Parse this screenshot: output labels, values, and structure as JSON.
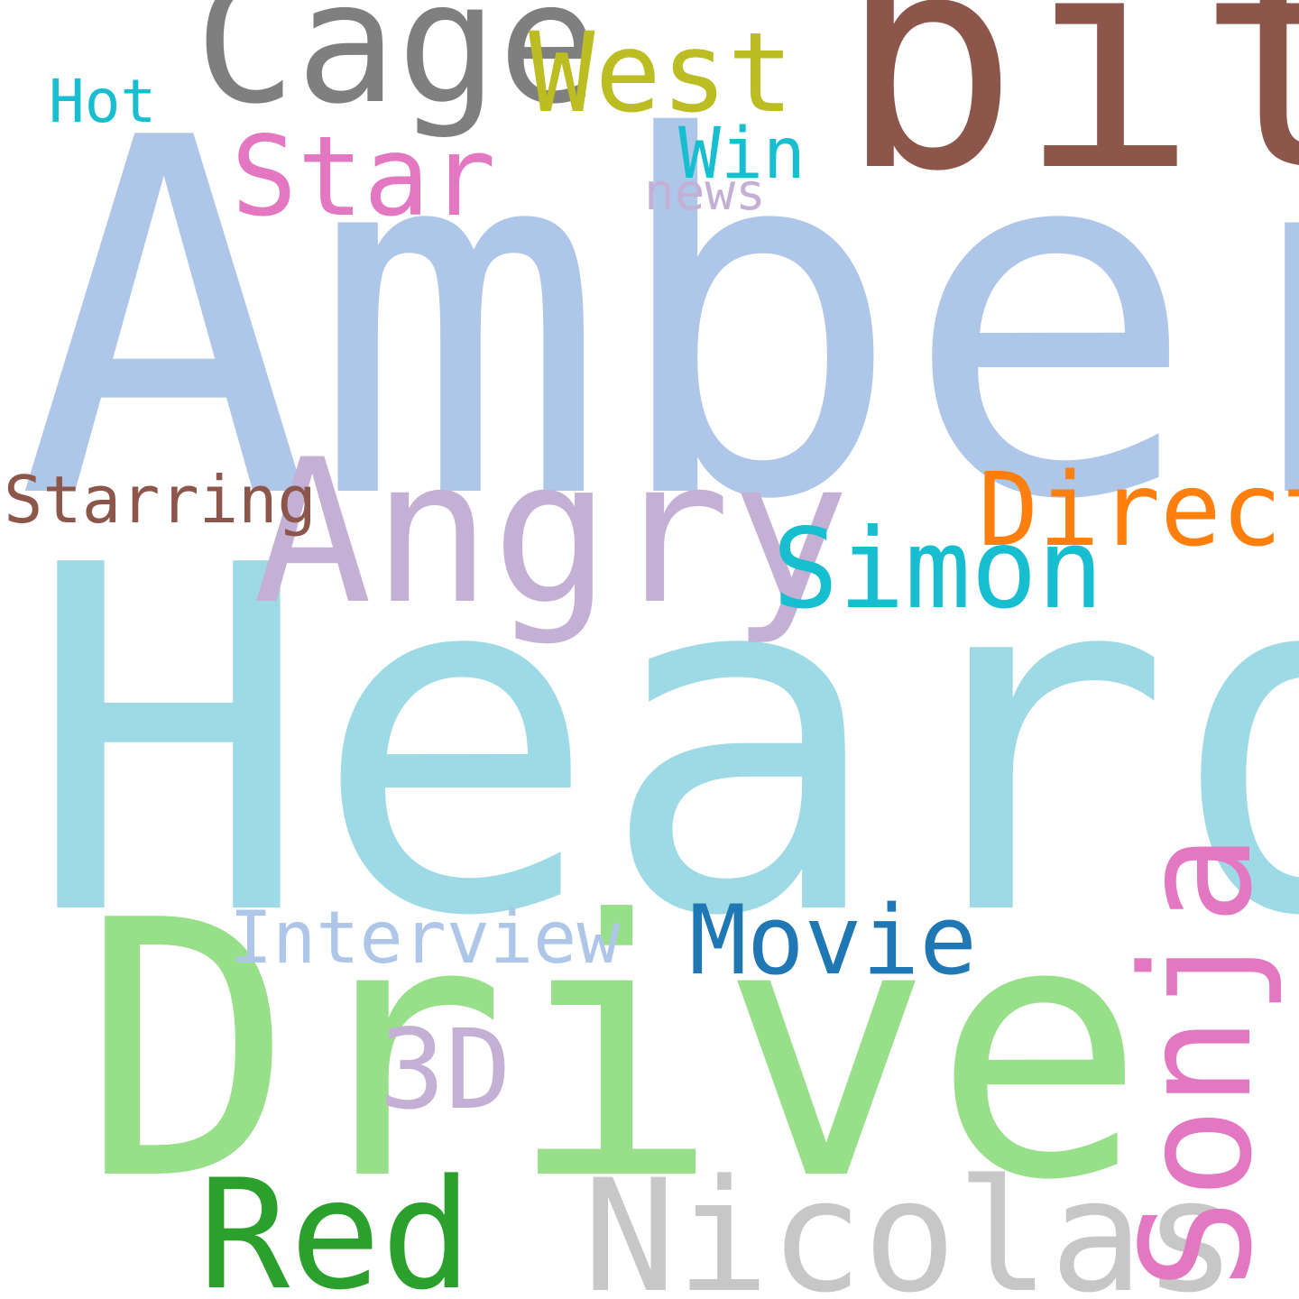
{
  "words": [
    {
      "id": "amber",
      "text": "Amber",
      "color": "#aec7e8",
      "orientation": "horizontal"
    },
    {
      "id": "heard",
      "text": "Heard",
      "color": "#9edae5",
      "orientation": "horizontal"
    },
    {
      "id": "drive",
      "text": "Drive",
      "color": "#98df8a",
      "orientation": "horizontal"
    },
    {
      "id": "bit",
      "text": "bit",
      "color": "#8c564b",
      "orientation": "horizontal"
    },
    {
      "id": "cage",
      "text": "Cage",
      "color": "#7f7f7f",
      "orientation": "horizontal"
    },
    {
      "id": "angry",
      "text": "Angry",
      "color": "#c5b0d5",
      "orientation": "horizontal"
    },
    {
      "id": "nicolas",
      "text": "Nicolas",
      "color": "#c7c7c7",
      "orientation": "horizontal"
    },
    {
      "id": "red",
      "text": "Red",
      "color": "#2ca02c",
      "orientation": "horizontal"
    },
    {
      "id": "sonja",
      "text": "Sonja",
      "color": "#e377c2",
      "orientation": "vertical"
    },
    {
      "id": "west",
      "text": "West",
      "color": "#bcbd22",
      "orientation": "horizontal"
    },
    {
      "id": "star",
      "text": "Star",
      "color": "#e377c2",
      "orientation": "horizontal"
    },
    {
      "id": "simon",
      "text": "Simon",
      "color": "#17becf",
      "orientation": "horizontal"
    },
    {
      "id": "direct",
      "text": "Direct",
      "color": "#ff7f0e",
      "orientation": "horizontal"
    },
    {
      "id": "movie",
      "text": "Movie",
      "color": "#1f77b4",
      "orientation": "horizontal"
    },
    {
      "id": "3d",
      "text": "3D",
      "color": "#c5b0d5",
      "orientation": "horizontal"
    },
    {
      "id": "interview",
      "text": "Interview",
      "color": "#aec7e8",
      "orientation": "horizontal"
    },
    {
      "id": "win",
      "text": "Win",
      "color": "#17becf",
      "orientation": "horizontal"
    },
    {
      "id": "starring",
      "text": "Starring",
      "color": "#8c564b",
      "orientation": "horizontal"
    },
    {
      "id": "hot",
      "text": "Hot",
      "color": "#17becf",
      "orientation": "horizontal"
    },
    {
      "id": "news",
      "text": "news",
      "color": "#c5b0d5",
      "orientation": "horizontal"
    }
  ]
}
